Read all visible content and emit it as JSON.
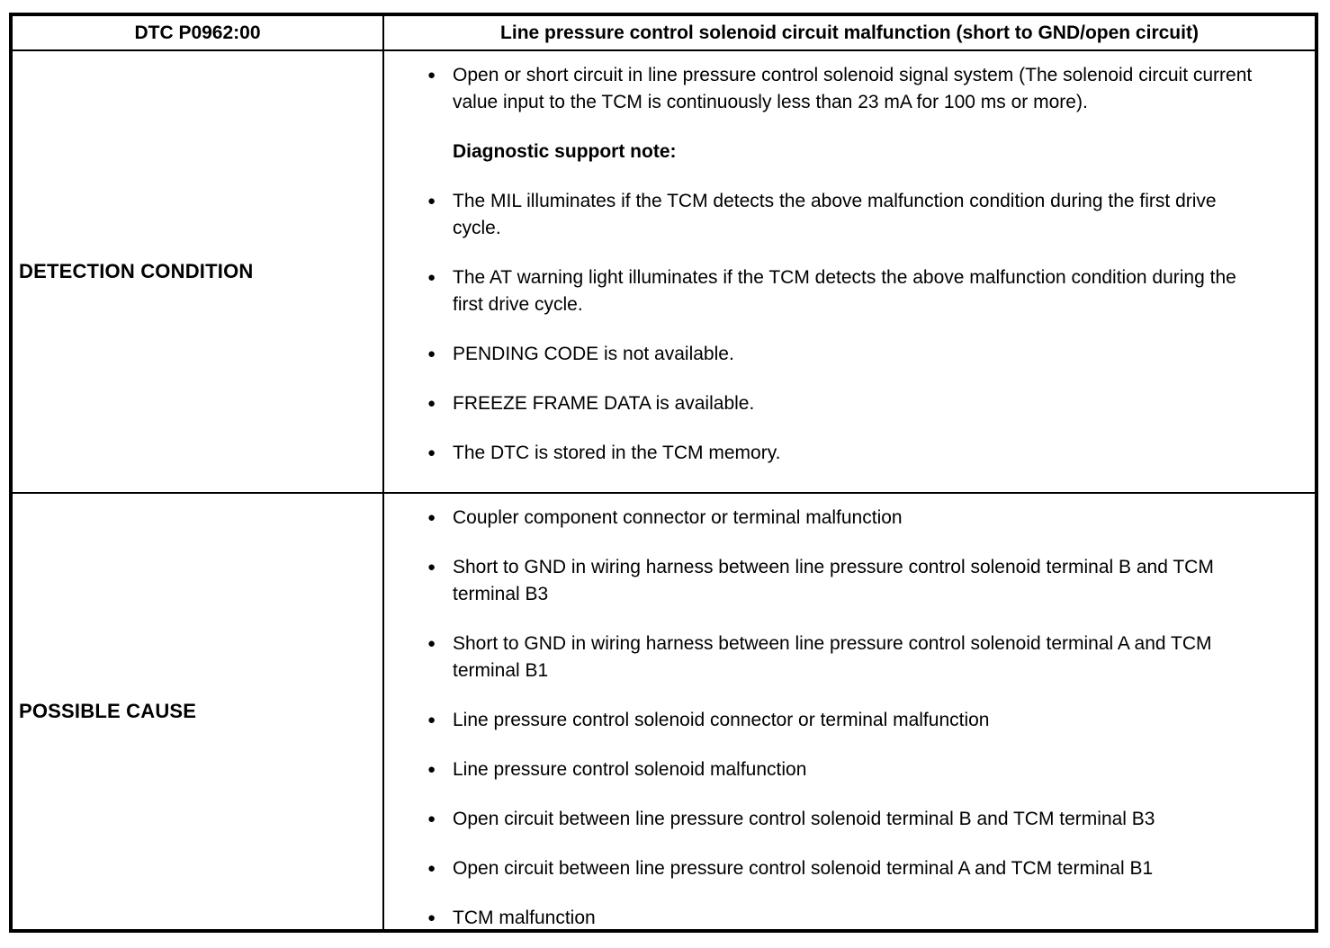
{
  "colors": {
    "text": "#000000",
    "background": "#ffffff",
    "border": "#000000"
  },
  "table": {
    "header": {
      "dtc_code": "DTC P0962:00",
      "title": "Line pressure control solenoid circuit malfunction (short to GND/open circuit)"
    },
    "rows": [
      {
        "label": "DETECTION CONDITION",
        "items": [
          {
            "type": "bullet",
            "text": "Open or short circuit in line pressure control solenoid signal system (The solenoid circuit current value input to the TCM is continuously less than 23 mA for 100 ms or more)."
          },
          {
            "type": "heading",
            "text": "Diagnostic support note:"
          },
          {
            "type": "bullet",
            "text": "The MIL illuminates if the TCM detects the above malfunction condition during the first drive cycle."
          },
          {
            "type": "bullet",
            "text": "The AT warning light illuminates if the TCM detects the above malfunction condition during the first drive cycle."
          },
          {
            "type": "bullet",
            "text": "PENDING CODE is not available."
          },
          {
            "type": "bullet",
            "text": "FREEZE FRAME DATA is available."
          },
          {
            "type": "bullet",
            "text": "The DTC is stored in the TCM memory."
          }
        ]
      },
      {
        "label": "POSSIBLE CAUSE",
        "items": [
          {
            "type": "bullet",
            "text": "Coupler component connector or terminal malfunction"
          },
          {
            "type": "bullet",
            "text": "Short to GND in wiring harness between line pressure control solenoid terminal B and TCM terminal B3"
          },
          {
            "type": "bullet",
            "text": "Short to GND in wiring harness between line pressure control solenoid terminal A and TCM terminal B1"
          },
          {
            "type": "bullet",
            "text": "Line pressure control solenoid connector or terminal malfunction"
          },
          {
            "type": "bullet",
            "text": "Line pressure control solenoid malfunction"
          },
          {
            "type": "bullet",
            "text": "Open circuit between line pressure control solenoid terminal B and TCM terminal B3"
          },
          {
            "type": "bullet",
            "text": "Open circuit between line pressure control solenoid terminal A and TCM terminal B1"
          },
          {
            "type": "bullet",
            "text": "TCM malfunction"
          }
        ]
      }
    ]
  }
}
